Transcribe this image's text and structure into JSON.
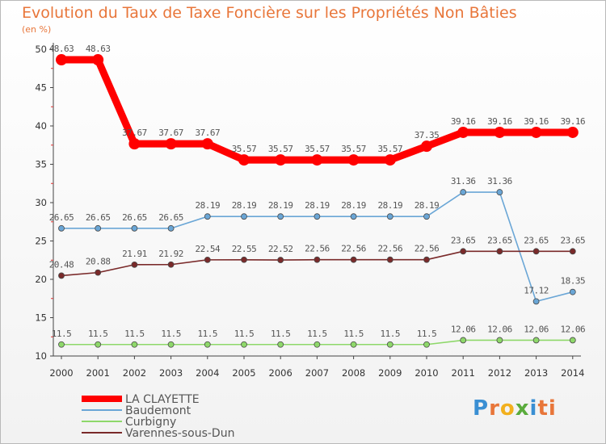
{
  "chart_data": {
    "type": "line",
    "title": "Evolution du Taux de Taxe Foncière sur les Propriétés Non Bâties",
    "subtitle": "(en %)",
    "x": [
      "2000",
      "2001",
      "2002",
      "2003",
      "2004",
      "2005",
      "2006",
      "2007",
      "2008",
      "2009",
      "2010",
      "2011",
      "2012",
      "2013",
      "2014"
    ],
    "ylim": [
      10,
      50
    ],
    "yticks": [
      10,
      15,
      20,
      25,
      30,
      35,
      40,
      45,
      50
    ],
    "grid": false,
    "legend_position": "bottom-left",
    "series": [
      {
        "name": "LA CLAYETTE",
        "color": "#ff0000",
        "width": "thick",
        "values": [
          48.63,
          48.63,
          37.67,
          37.67,
          37.67,
          35.57,
          35.57,
          35.57,
          35.57,
          35.57,
          37.35,
          39.16,
          39.16,
          39.16,
          39.16
        ],
        "labels": [
          "48.63",
          "48.63",
          "37.67",
          "37.67",
          "37.67",
          "35.57",
          "35.57",
          "35.57",
          "35.57",
          "35.57",
          "37.35",
          "39.16",
          "39.16",
          "39.16",
          "39.16"
        ]
      },
      {
        "name": "Baudemont",
        "color": "#6aa6d6",
        "width": "thin",
        "values": [
          26.65,
          26.65,
          26.65,
          26.65,
          28.19,
          28.19,
          28.19,
          28.19,
          28.19,
          28.19,
          28.19,
          31.36,
          31.36,
          17.12,
          18.35
        ],
        "labels": [
          "26.65",
          "26.65",
          "26.65",
          "26.65",
          "28.19",
          "28.19",
          "28.19",
          "28.19",
          "28.19",
          "28.19",
          "28.19",
          "31.36",
          "31.36",
          "17.12",
          "18.35"
        ]
      },
      {
        "name": "Curbigny",
        "color": "#8ed86a",
        "width": "thin",
        "values": [
          11.5,
          11.5,
          11.5,
          11.5,
          11.5,
          11.5,
          11.5,
          11.5,
          11.5,
          11.5,
          11.5,
          12.06,
          12.06,
          12.06,
          12.06
        ],
        "labels": [
          "11.5",
          "11.5",
          "11.5",
          "11.5",
          "11.5",
          "11.5",
          "11.5",
          "11.5",
          "11.5",
          "11.5",
          "11.5",
          "12.06",
          "12.06",
          "12.06",
          "12.06"
        ]
      },
      {
        "name": "Varennes-sous-Dun",
        "color": "#7a2a2a",
        "width": "thin",
        "values": [
          20.48,
          20.88,
          21.91,
          21.92,
          22.54,
          22.55,
          22.52,
          22.56,
          22.56,
          22.56,
          22.56,
          23.65,
          23.65,
          23.65,
          23.65
        ],
        "labels": [
          "20.48",
          "20.88",
          "21.91",
          "21.92",
          "22.54",
          "22.55",
          "22.52",
          "22.56",
          "22.56",
          "22.56",
          "22.56",
          "23.65",
          "23.65",
          "23.65",
          "23.65"
        ]
      }
    ]
  },
  "logo": {
    "text": "Proxiti"
  }
}
